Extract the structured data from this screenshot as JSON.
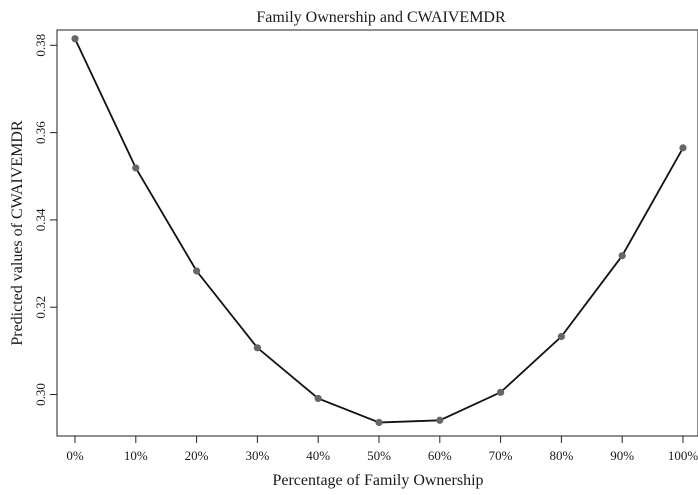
{
  "chart_data": {
    "type": "line",
    "title": "Family Ownership and CWAIVEMDR",
    "xlabel": "Percentage of Family Ownership",
    "ylabel": "Predicted values of CWAIVEMDR",
    "categories": [
      "0%",
      "10%",
      "20%",
      "30%",
      "40%",
      "50%",
      "60%",
      "70%",
      "80%",
      "90%",
      "100%"
    ],
    "values": [
      0.3815,
      0.3519,
      0.3283,
      0.3107,
      0.2991,
      0.2936,
      0.2941,
      0.3005,
      0.3133,
      0.3318,
      0.3565
    ],
    "yticks": [
      "0.30",
      "0.32",
      "0.34",
      "0.36",
      "0.38"
    ],
    "ylim": [
      0.2905,
      0.3835
    ],
    "grid": false,
    "line_color": "#111111",
    "marker_color": "#666666"
  }
}
